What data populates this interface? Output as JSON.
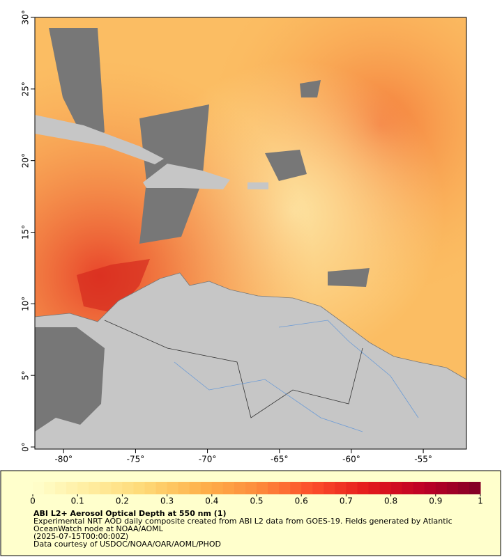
{
  "map": {
    "xlim": [
      -82,
      -52
    ],
    "ylim": [
      0,
      30
    ],
    "xticks": [
      {
        "value": -80,
        "label": "-80°"
      },
      {
        "value": -75,
        "label": "-75°"
      },
      {
        "value": -70,
        "label": "-70°"
      },
      {
        "value": -65,
        "label": "-65°"
      },
      {
        "value": -60,
        "label": "-60°"
      },
      {
        "value": -55,
        "label": "-55°"
      }
    ],
    "yticks": [
      {
        "value": 0,
        "label": "0°"
      },
      {
        "value": 5,
        "label": "5°"
      },
      {
        "value": 10,
        "label": "10°"
      },
      {
        "value": 15,
        "label": "15°"
      },
      {
        "value": 20,
        "label": "20°"
      },
      {
        "value": 25,
        "label": "25°"
      },
      {
        "value": 30,
        "label": "30°"
      }
    ]
  },
  "colorbar": {
    "lim": [
      0,
      1
    ],
    "ticks": [
      0,
      0.1,
      0.2,
      0.3,
      0.4,
      0.5,
      0.6,
      0.7,
      0.8,
      0.9,
      1
    ],
    "colors": [
      "#ffffcc",
      "#ffeda0",
      "#fed976",
      "#feb24c",
      "#fd8d3c",
      "#fc4e2a",
      "#e31a1c",
      "#bd0026",
      "#800026"
    ]
  },
  "caption": {
    "title": "ABI L2+ Aerosol Optical Depth at 550 nm (1)",
    "lines": [
      "Experimental NRT AOD daily composite created from ABI L2 data from GOES-19. Fields generated by Atlantic OceanWatch node at NOAA/AOML",
      "(2025-07-15T00:00:00Z)",
      "Data courtesy of USDOC/NOAA/OAR/AOML/PHOD"
    ]
  }
}
